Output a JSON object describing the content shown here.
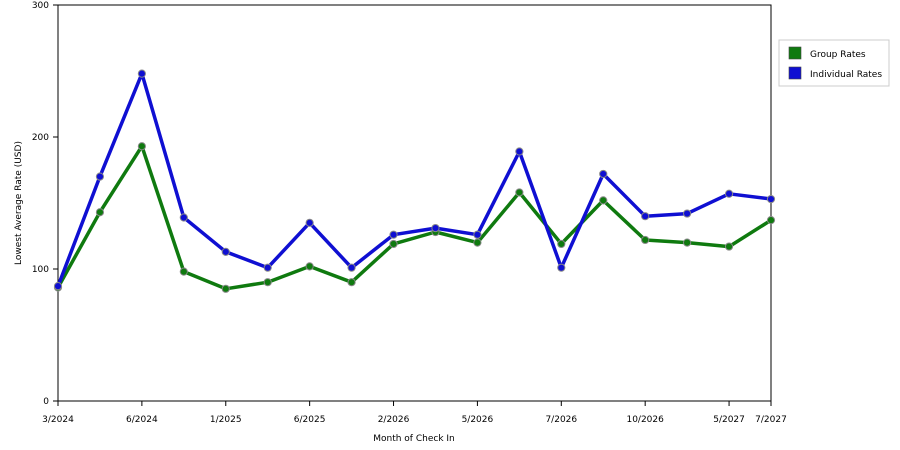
{
  "chart_data": {
    "type": "line",
    "xlabel": "Month of Check In",
    "ylabel": "Lowest Average Rate (USD)",
    "ylim": [
      0,
      300
    ],
    "yticks": [
      0,
      100,
      200,
      300
    ],
    "grid": "horizontal-dashed",
    "legend_position": "right",
    "x_tick_labels": [
      {
        "index": 0,
        "label": "3/2024"
      },
      {
        "index": 2,
        "label": "6/2024"
      },
      {
        "index": 4,
        "label": "1/2025"
      },
      {
        "index": 6,
        "label": "6/2025"
      },
      {
        "index": 8,
        "label": "2/2026"
      },
      {
        "index": 10,
        "label": "5/2026"
      },
      {
        "index": 12,
        "label": "7/2026"
      },
      {
        "index": 14,
        "label": "10/2026"
      },
      {
        "index": 16,
        "label": "5/2027"
      },
      {
        "index": 17,
        "label": "7/2027"
      }
    ],
    "series": [
      {
        "name": "Group Rates",
        "color": "#0f7a0f",
        "values": [
          86,
          143,
          193,
          98,
          85,
          90,
          102,
          90,
          119,
          128,
          120,
          158,
          119,
          152,
          122,
          120,
          117,
          137
        ]
      },
      {
        "name": "Individual Rates",
        "color": "#0f0fd2",
        "values": [
          87,
          170,
          248,
          139,
          113,
          101,
          135,
          101,
          126,
          131,
          126,
          189,
          101,
          172,
          140,
          142,
          157,
          153
        ]
      }
    ]
  }
}
